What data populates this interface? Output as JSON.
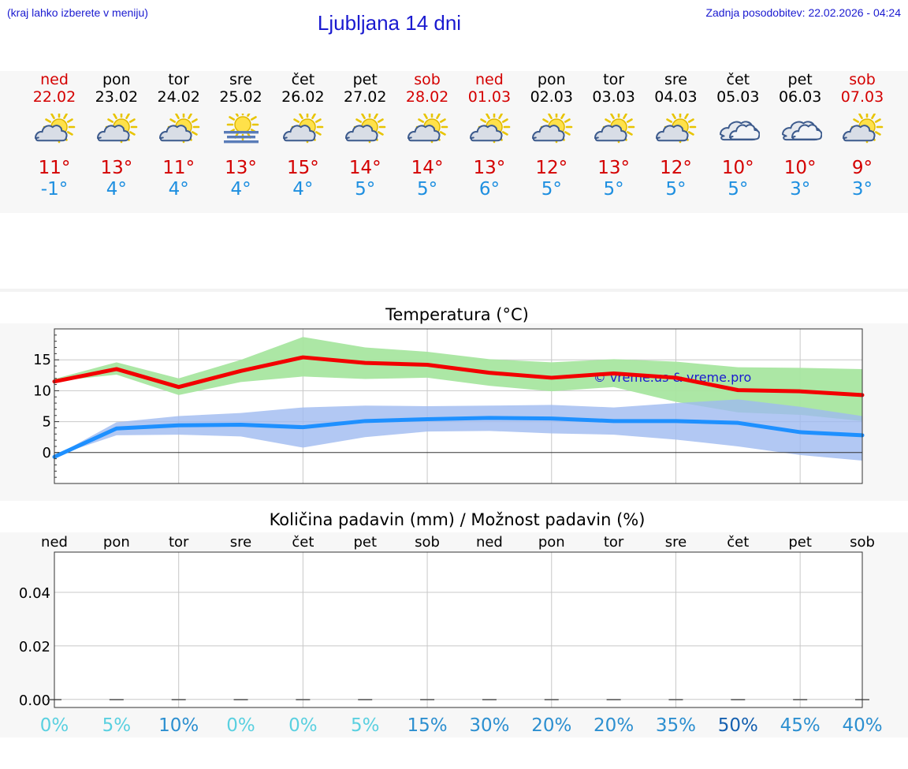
{
  "header": {
    "hint": "(kraj lahko izberete v meniju)",
    "title": "Ljubljana 14 dni",
    "updated": "Zadnja posodobitev: 22.02.2026 - 04:24"
  },
  "colors": {
    "link_blue": "#1a1ad0",
    "max_temp": "#d40000",
    "min_temp": "#1e8fe0",
    "max_band": "#a8e6a0",
    "min_band": "#a9c3f2",
    "weekend_red": "#d40000"
  },
  "days": [
    {
      "name": "ned",
      "date": "22.02",
      "icon": "partly-cloudy-sun-icon",
      "tmax": "11°",
      "tmin": "-1°",
      "weekend": true
    },
    {
      "name": "pon",
      "date": "23.02",
      "icon": "partly-cloudy-sun-icon",
      "tmax": "13°",
      "tmin": "4°",
      "weekend": false
    },
    {
      "name": "tor",
      "date": "24.02",
      "icon": "partly-cloudy-sun-icon",
      "tmax": "11°",
      "tmin": "4°",
      "weekend": false
    },
    {
      "name": "sre",
      "date": "25.02",
      "icon": "fog-sun-icon",
      "tmax": "13°",
      "tmin": "4°",
      "weekend": false
    },
    {
      "name": "čet",
      "date": "26.02",
      "icon": "partly-cloudy-sun-icon",
      "tmax": "15°",
      "tmin": "4°",
      "weekend": false
    },
    {
      "name": "pet",
      "date": "27.02",
      "icon": "partly-cloudy-sun-icon",
      "tmax": "14°",
      "tmin": "5°",
      "weekend": false
    },
    {
      "name": "sob",
      "date": "28.02",
      "icon": "partly-cloudy-sun-icon",
      "tmax": "14°",
      "tmin": "5°",
      "weekend": true
    },
    {
      "name": "ned",
      "date": "01.03",
      "icon": "partly-cloudy-sun-icon",
      "tmax": "13°",
      "tmin": "6°",
      "weekend": true
    },
    {
      "name": "pon",
      "date": "02.03",
      "icon": "partly-cloudy-sun-icon",
      "tmax": "12°",
      "tmin": "5°",
      "weekend": false
    },
    {
      "name": "tor",
      "date": "03.03",
      "icon": "partly-cloudy-sun-icon",
      "tmax": "13°",
      "tmin": "5°",
      "weekend": false
    },
    {
      "name": "sre",
      "date": "04.03",
      "icon": "partly-cloudy-sun-icon",
      "tmax": "12°",
      "tmin": "5°",
      "weekend": false
    },
    {
      "name": "čet",
      "date": "05.03",
      "icon": "cloudy-icon",
      "tmax": "10°",
      "tmin": "5°",
      "weekend": false
    },
    {
      "name": "pet",
      "date": "06.03",
      "icon": "cloudy-icon",
      "tmax": "10°",
      "tmin": "3°",
      "weekend": false
    },
    {
      "name": "sob",
      "date": "07.03",
      "icon": "partly-cloudy-sun-icon",
      "tmax": "9°",
      "tmin": "3°",
      "weekend": true
    }
  ],
  "chart_data": [
    {
      "type": "line",
      "title": "Temperatura (°C)",
      "watermark": "© vreme.us & vreme.pro",
      "ylim": [
        -5,
        20
      ],
      "yticks": [
        0,
        5,
        10,
        15
      ],
      "grid": true,
      "x": [
        "22.02",
        "23.02",
        "24.02",
        "25.02",
        "26.02",
        "27.02",
        "28.02",
        "01.03",
        "02.03",
        "03.03",
        "04.03",
        "05.03",
        "06.03",
        "07.03"
      ],
      "series": [
        {
          "values": [
            11.5,
            13.5,
            10.6,
            13.2,
            15.4,
            14.5,
            14.2,
            12.9,
            12.1,
            12.8,
            12.1,
            10.1,
            9.9,
            9.3
          ],
          "band_low": [
            11.5,
            12.6,
            9.3,
            11.4,
            12.3,
            11.9,
            12.1,
            10.8,
            9.9,
            10.6,
            8.2,
            6.5,
            6.1,
            5.1
          ],
          "band_high": [
            11.9,
            14.6,
            12.0,
            15.0,
            18.7,
            17.0,
            16.3,
            15.1,
            14.6,
            15.1,
            14.7,
            13.8,
            13.7,
            13.5
          ]
        },
        {
          "values": [
            -0.7,
            3.9,
            4.4,
            4.5,
            4.1,
            5.1,
            5.4,
            5.6,
            5.5,
            5.1,
            5.1,
            4.8,
            3.3,
            2.8
          ],
          "band_low": [
            -0.6,
            2.8,
            2.9,
            2.6,
            0.8,
            2.5,
            3.4,
            3.5,
            3.1,
            2.9,
            2.1,
            1.0,
            -0.4,
            -1.3
          ],
          "band_high": [
            -0.6,
            4.9,
            5.9,
            6.4,
            7.3,
            7.6,
            7.5,
            7.6,
            7.7,
            7.3,
            8.0,
            8.6,
            7.4,
            5.9
          ]
        }
      ]
    },
    {
      "type": "bar",
      "title": "Količina padavin (mm) / Možnost padavin (%)",
      "categories": [
        "ned",
        "pon",
        "tor",
        "sre",
        "čet",
        "pet",
        "sob",
        "ned",
        "pon",
        "tor",
        "sre",
        "čet",
        "pet",
        "sob"
      ],
      "values": [
        0,
        0,
        0,
        0,
        0,
        0,
        0,
        0,
        0,
        0,
        0,
        0,
        0,
        0
      ],
      "ylim": [
        -0.003,
        0.055
      ],
      "yticks": [
        0.0,
        0.02,
        0.04
      ],
      "ytick_labels": [
        "0.00",
        "0.02",
        "0.04"
      ],
      "probability": [
        "0%",
        "5%",
        "10%",
        "0%",
        "0%",
        "5%",
        "15%",
        "30%",
        "20%",
        "20%",
        "35%",
        "50%",
        "45%",
        "40%"
      ],
      "probability_colors": [
        "#5ad0e0",
        "#5ad0e0",
        "#2c8fd0",
        "#5ad0e0",
        "#5ad0e0",
        "#5ad0e0",
        "#2c8fd0",
        "#2c8fd0",
        "#2c8fd0",
        "#2c8fd0",
        "#2c8fd0",
        "#1560b0",
        "#2c8fd0",
        "#2c8fd0"
      ],
      "grid": true
    }
  ]
}
